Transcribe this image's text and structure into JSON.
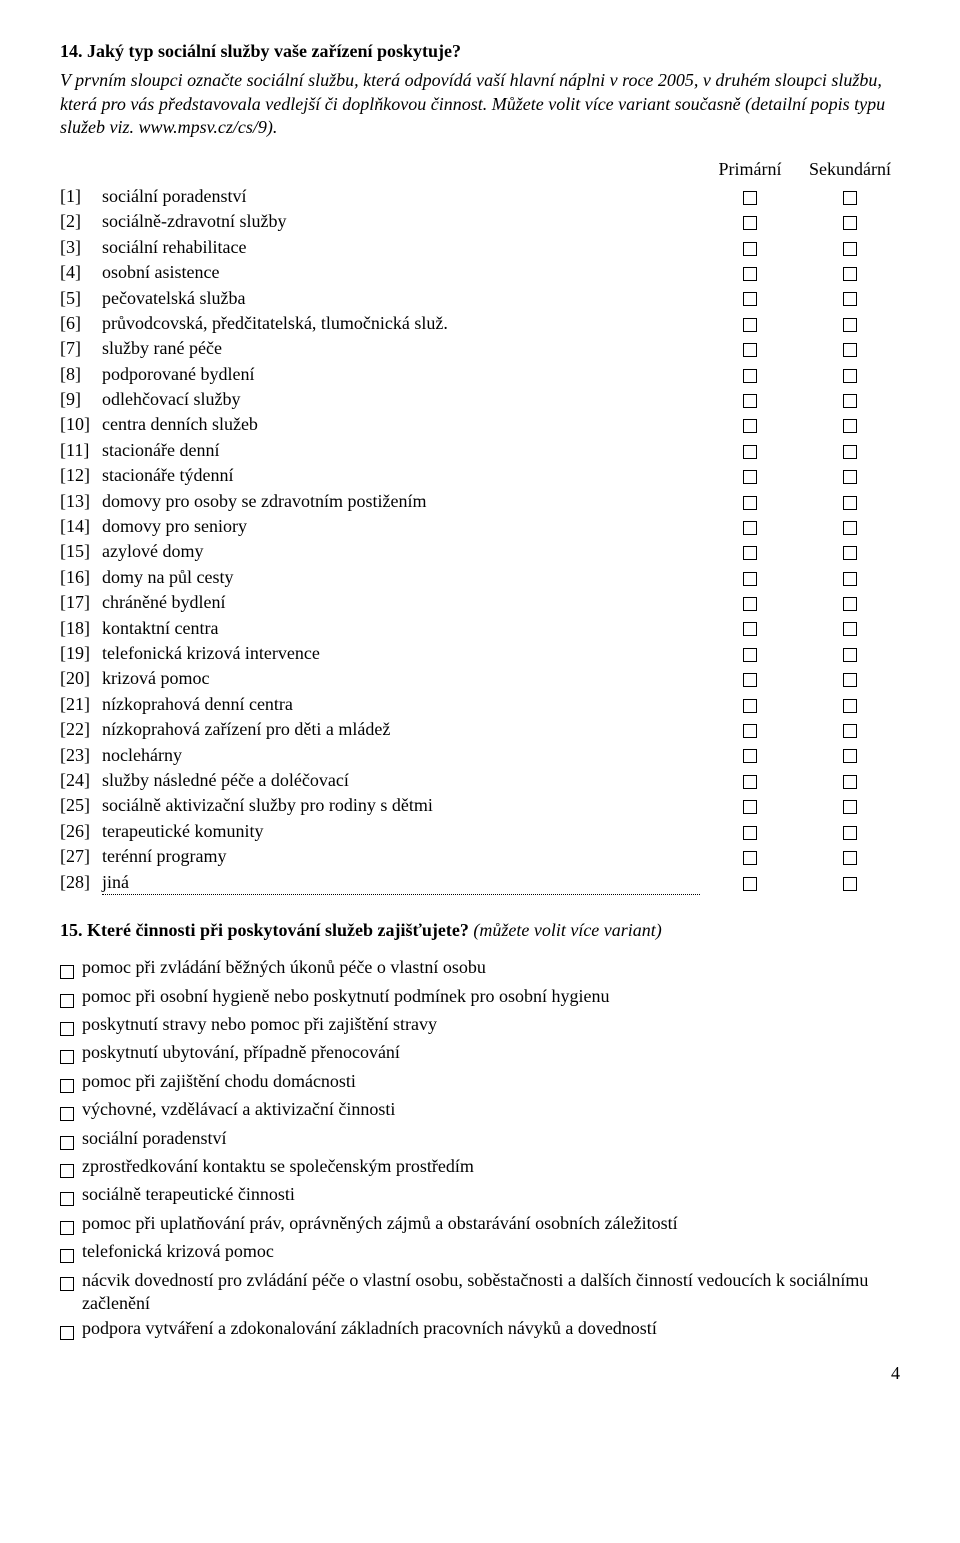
{
  "q14": {
    "title": "14. Jaký typ sociální služby vaše zařízení poskytuje?",
    "intro": "V prvním sloupci označte sociální službu, která odpovídá vaší hlavní náplni v roce 2005, v druhém sloupci službu, která pro vás představovala vedlejší či doplňkovou činnost. Můžete volit více variant současně (detailní popis typu služeb viz. www.mpsv.cz/cs/9).",
    "col_primary": "Primární",
    "col_secondary": "Sekundární",
    "rows": [
      {
        "idx": "[1]",
        "label": "sociální poradenství"
      },
      {
        "idx": "[2]",
        "label": "sociálně-zdravotní služby"
      },
      {
        "idx": "[3]",
        "label": "sociální rehabilitace"
      },
      {
        "idx": "[4]",
        "label": "osobní asistence"
      },
      {
        "idx": "[5]",
        "label": "pečovatelská služba"
      },
      {
        "idx": "[6]",
        "label": "průvodcovská, předčitatelská, tlumočnická služ."
      },
      {
        "idx": "[7]",
        "label": "služby rané péče"
      },
      {
        "idx": "[8]",
        "label": "podporované bydlení"
      },
      {
        "idx": "[9]",
        "label": "odlehčovací služby"
      },
      {
        "idx": "[10]",
        "label": "centra denních služeb"
      },
      {
        "idx": "[11]",
        "label": "stacionáře denní"
      },
      {
        "idx": "[12]",
        "label": "stacionáře týdenní"
      },
      {
        "idx": "[13]",
        "label": "domovy pro osoby se zdravotním postižením"
      },
      {
        "idx": "[14]",
        "label": "domovy pro seniory"
      },
      {
        "idx": "[15]",
        "label": "azylové domy"
      },
      {
        "idx": "[16]",
        "label": "domy na půl cesty"
      },
      {
        "idx": "[17]",
        "label": "chráněné bydlení"
      },
      {
        "idx": "[18]",
        "label": "kontaktní centra"
      },
      {
        "idx": "[19]",
        "label": "telefonická krizová intervence"
      },
      {
        "idx": "[20]",
        "label": "krizová pomoc"
      },
      {
        "idx": "[21]",
        "label": "nízkoprahová denní centra"
      },
      {
        "idx": "[22]",
        "label": "nízkoprahová zařízení pro děti a mládež"
      },
      {
        "idx": "[23]",
        "label": "noclehárny"
      },
      {
        "idx": "[24]",
        "label": "služby následné péče a doléčovací"
      },
      {
        "idx": "[25]",
        "label": "sociálně aktivizační služby pro rodiny s dětmi"
      },
      {
        "idx": "[26]",
        "label": "terapeutické komunity"
      },
      {
        "idx": "[27]",
        "label": "terénní programy"
      },
      {
        "idx": "[28]",
        "label": "jiná",
        "dotted": true
      }
    ]
  },
  "q15": {
    "title": "15. Které činnosti při poskytování služeb zajišťujete?",
    "note": "(můžete volit více variant)",
    "options": [
      "pomoc při zvládání běžných úkonů péče o vlastní osobu",
      "pomoc při osobní hygieně nebo poskytnutí podmínek pro osobní hygienu",
      "poskytnutí stravy nebo pomoc při zajištění stravy",
      "poskytnutí ubytování, případně přenocování",
      "pomoc při zajištění chodu domácnosti",
      "výchovné, vzdělávací a aktivizační činnosti",
      "sociální poradenství",
      "zprostředkování kontaktu se společenským prostředím",
      "sociálně terapeutické činnosti",
      "pomoc při uplatňování práv, oprávněných zájmů a obstarávání osobních záležitostí",
      "telefonická krizová pomoc",
      "nácvik dovedností pro zvládání péče o vlastní osobu, soběstačnosti a dalších činností vedoucích k sociálnímu začlenění",
      "podpora vytváření a zdokonalování základních pracovních návyků a dovedností"
    ]
  },
  "page_number": "4"
}
